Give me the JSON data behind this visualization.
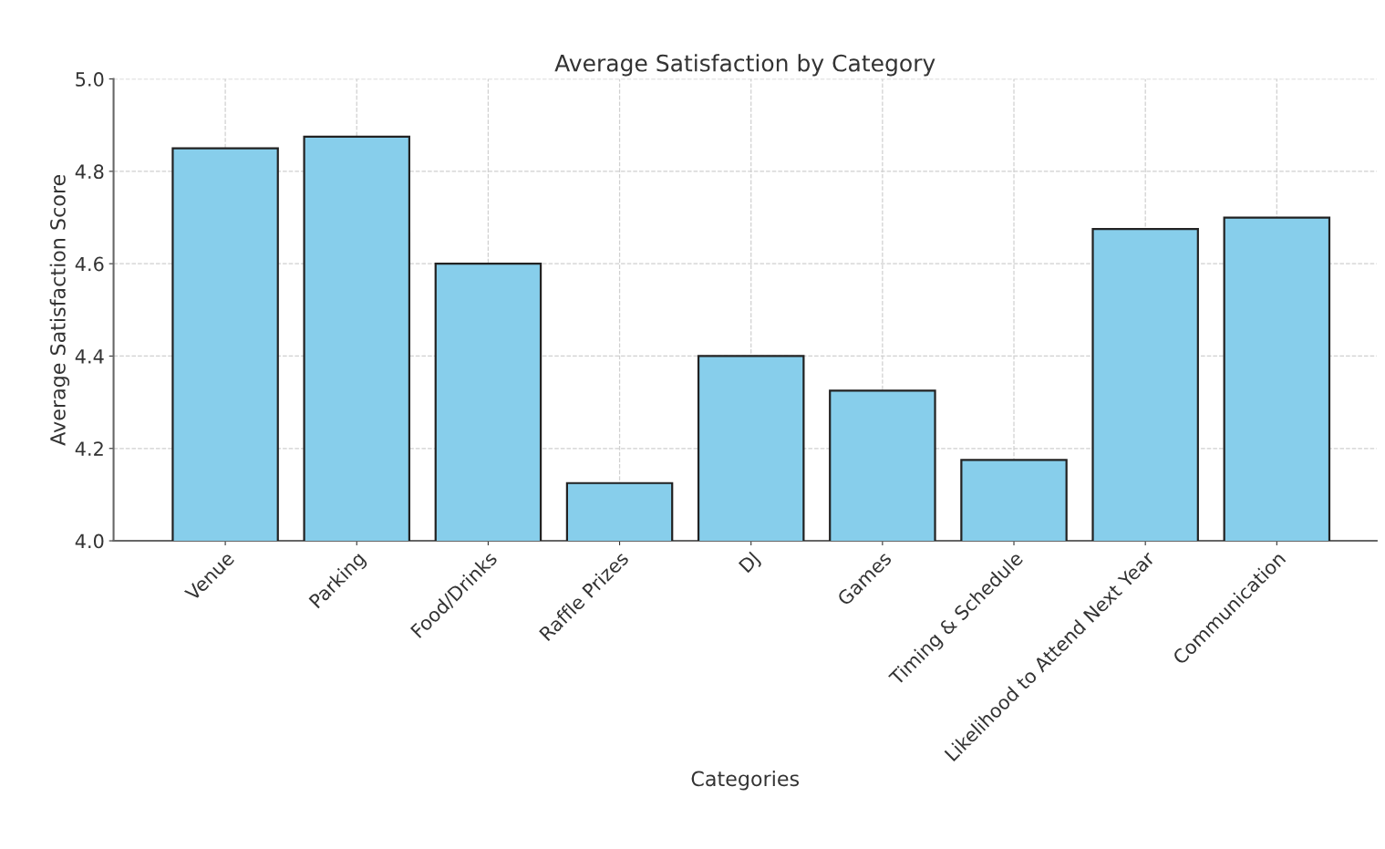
{
  "chart_data": {
    "type": "bar",
    "title": "Average Satisfaction by Category",
    "xlabel": "Categories",
    "ylabel": "Average Satisfaction Score",
    "categories": [
      "Venue",
      "Parking",
      "Food/Drinks",
      "Raffle Prizes",
      "DJ",
      "Games",
      "Timing & Schedule",
      "Likelihood to Attend Next Year",
      "Communication"
    ],
    "values": [
      4.85,
      4.875,
      4.6,
      4.125,
      4.4,
      4.325,
      4.175,
      4.675,
      4.7
    ],
    "color": "#87ceeb",
    "ylim": [
      4.0,
      5.0
    ],
    "yticks": [
      {
        "value": 4.0,
        "label": "4.0"
      },
      4.2,
      4.4,
      4.6,
      4.8,
      {
        "value": 5.0,
        "label": "5.0"
      }
    ],
    "grid": true
  }
}
